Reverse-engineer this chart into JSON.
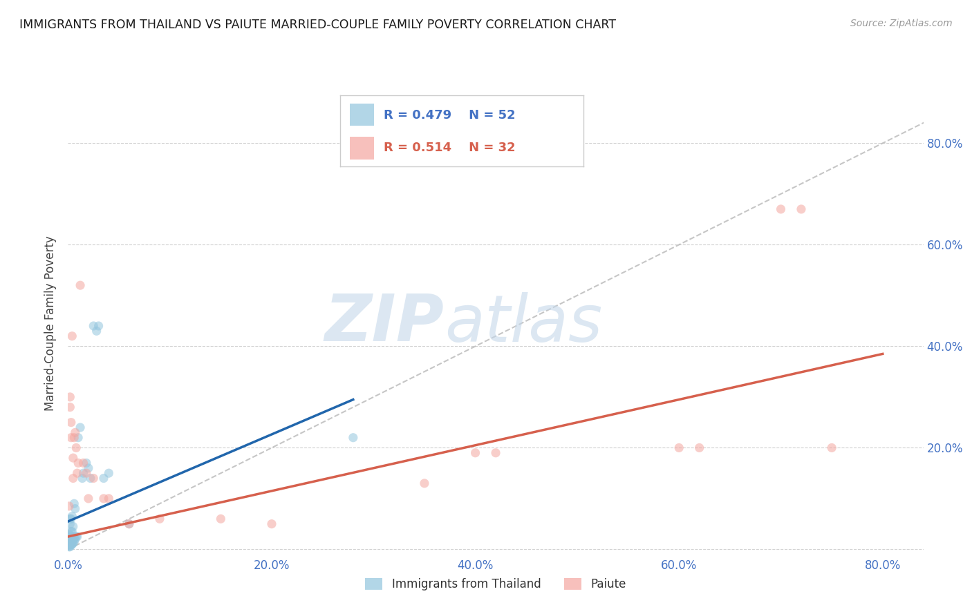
{
  "title": "IMMIGRANTS FROM THAILAND VS PAIUTE MARRIED-COUPLE FAMILY POVERTY CORRELATION CHART",
  "source": "Source: ZipAtlas.com",
  "ylabel": "Married-Couple Family Poverty",
  "legend_bottom": [
    "Immigrants from Thailand",
    "Paiute"
  ],
  "r_blue": 0.479,
  "n_blue": 52,
  "r_pink": 0.514,
  "n_pink": 32,
  "xlim": [
    0.0,
    0.84
  ],
  "ylim": [
    -0.01,
    0.9
  ],
  "yticks": [
    0.0,
    0.2,
    0.4,
    0.6,
    0.8
  ],
  "xticks": [
    0.0,
    0.2,
    0.4,
    0.6,
    0.8
  ],
  "blue_color": "#92c5de",
  "pink_color": "#f4a6a0",
  "trend_blue": "#2166ac",
  "trend_pink": "#d6604d",
  "diagonal_color": "#b8b8b8",
  "watermark_zip": "ZIP",
  "watermark_atlas": "atlas",
  "blue_trend_x": [
    0.0,
    0.28
  ],
  "blue_trend_y": [
    0.055,
    0.295
  ],
  "pink_trend_x": [
    0.0,
    0.8
  ],
  "pink_trend_y": [
    0.025,
    0.385
  ],
  "blue_scatter": [
    [
      0.001,
      0.005
    ],
    [
      0.001,
      0.008
    ],
    [
      0.001,
      0.012
    ],
    [
      0.001,
      0.015
    ],
    [
      0.001,
      0.018
    ],
    [
      0.001,
      0.022
    ],
    [
      0.001,
      0.025
    ],
    [
      0.001,
      0.03
    ],
    [
      0.002,
      0.005
    ],
    [
      0.002,
      0.008
    ],
    [
      0.002,
      0.012
    ],
    [
      0.002,
      0.016
    ],
    [
      0.002,
      0.022
    ],
    [
      0.002,
      0.028
    ],
    [
      0.002,
      0.05
    ],
    [
      0.002,
      0.06
    ],
    [
      0.003,
      0.008
    ],
    [
      0.003,
      0.012
    ],
    [
      0.003,
      0.018
    ],
    [
      0.003,
      0.025
    ],
    [
      0.003,
      0.035
    ],
    [
      0.003,
      0.06
    ],
    [
      0.004,
      0.01
    ],
    [
      0.004,
      0.015
    ],
    [
      0.004,
      0.022
    ],
    [
      0.004,
      0.035
    ],
    [
      0.004,
      0.065
    ],
    [
      0.005,
      0.012
    ],
    [
      0.005,
      0.018
    ],
    [
      0.005,
      0.025
    ],
    [
      0.005,
      0.045
    ],
    [
      0.006,
      0.015
    ],
    [
      0.006,
      0.022
    ],
    [
      0.006,
      0.09
    ],
    [
      0.007,
      0.02
    ],
    [
      0.007,
      0.08
    ],
    [
      0.008,
      0.025
    ],
    [
      0.009,
      0.025
    ],
    [
      0.01,
      0.22
    ],
    [
      0.012,
      0.24
    ],
    [
      0.014,
      0.14
    ],
    [
      0.015,
      0.15
    ],
    [
      0.018,
      0.17
    ],
    [
      0.02,
      0.16
    ],
    [
      0.022,
      0.14
    ],
    [
      0.025,
      0.44
    ],
    [
      0.028,
      0.43
    ],
    [
      0.03,
      0.44
    ],
    [
      0.035,
      0.14
    ],
    [
      0.04,
      0.15
    ],
    [
      0.06,
      0.05
    ],
    [
      0.28,
      0.22
    ]
  ],
  "pink_scatter": [
    [
      0.001,
      0.085
    ],
    [
      0.002,
      0.28
    ],
    [
      0.002,
      0.3
    ],
    [
      0.003,
      0.22
    ],
    [
      0.003,
      0.25
    ],
    [
      0.004,
      0.42
    ],
    [
      0.005,
      0.14
    ],
    [
      0.005,
      0.18
    ],
    [
      0.006,
      0.22
    ],
    [
      0.007,
      0.23
    ],
    [
      0.008,
      0.2
    ],
    [
      0.009,
      0.15
    ],
    [
      0.01,
      0.17
    ],
    [
      0.012,
      0.52
    ],
    [
      0.015,
      0.17
    ],
    [
      0.018,
      0.15
    ],
    [
      0.02,
      0.1
    ],
    [
      0.025,
      0.14
    ],
    [
      0.035,
      0.1
    ],
    [
      0.04,
      0.1
    ],
    [
      0.06,
      0.05
    ],
    [
      0.09,
      0.06
    ],
    [
      0.15,
      0.06
    ],
    [
      0.2,
      0.05
    ],
    [
      0.35,
      0.13
    ],
    [
      0.4,
      0.19
    ],
    [
      0.42,
      0.19
    ],
    [
      0.6,
      0.2
    ],
    [
      0.62,
      0.2
    ],
    [
      0.7,
      0.67
    ],
    [
      0.72,
      0.67
    ],
    [
      0.75,
      0.2
    ]
  ]
}
